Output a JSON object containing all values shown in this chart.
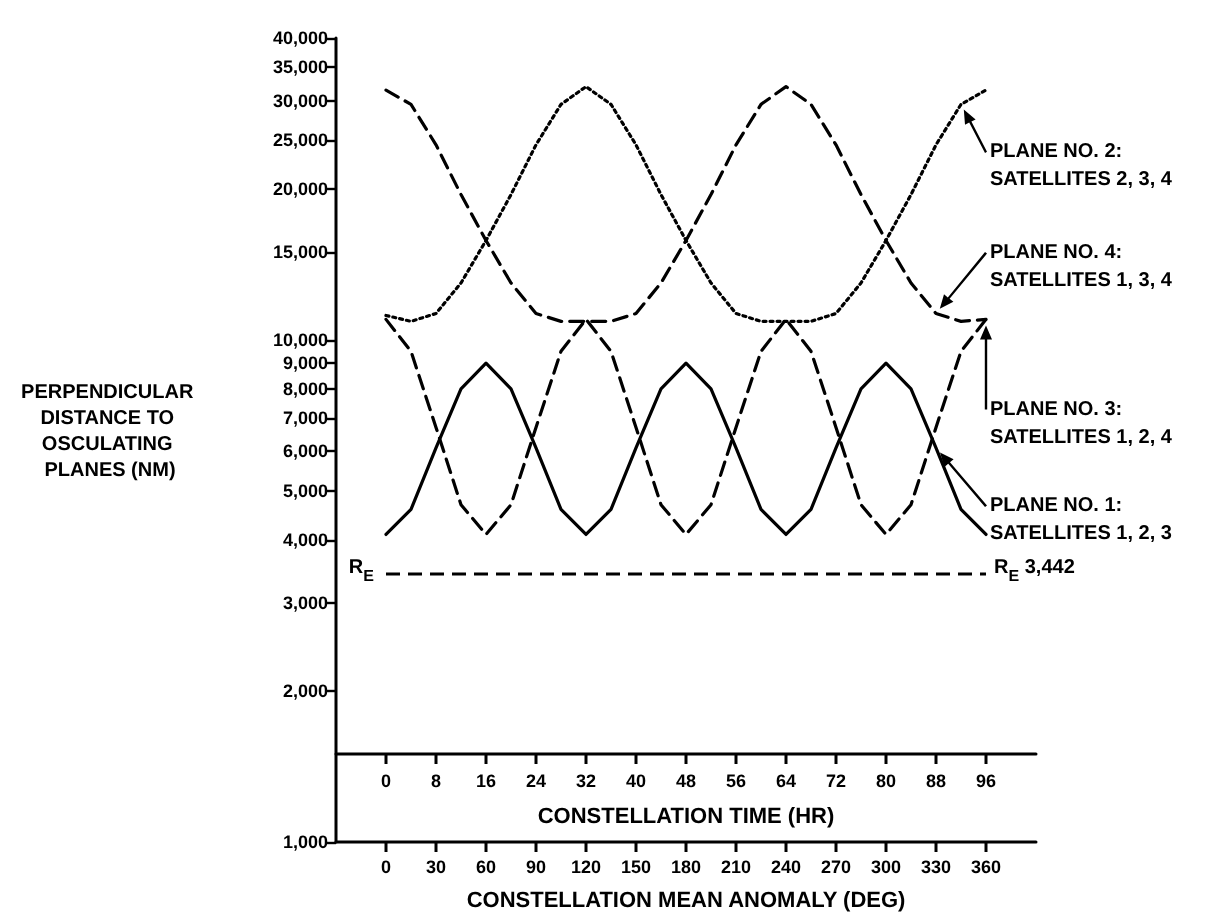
{
  "chart_data": {
    "type": "line",
    "x": [
      0,
      4,
      8,
      12,
      16,
      20,
      24,
      28,
      32,
      36,
      40,
      44,
      48,
      52,
      56,
      60,
      64,
      68,
      72,
      76,
      80,
      84,
      88,
      92,
      96
    ],
    "series": [
      {
        "name": "PLANE NO. 2: SATELLITES 2, 3, 4",
        "color": "#000000",
        "line_style": "dotted",
        "values": [
          11200,
          10900,
          11300,
          13000,
          15800,
          19500,
          24500,
          29500,
          32000,
          29500,
          24500,
          19500,
          15800,
          13000,
          11300,
          10900,
          10900,
          10900,
          11300,
          13000,
          15800,
          19500,
          24500,
          29500,
          31500
        ]
      },
      {
        "name": "PLANE NO. 4: SATELLITES 1, 3, 4",
        "color": "#000000",
        "line_style": "dashed",
        "values": [
          31500,
          29500,
          24500,
          19500,
          15800,
          13000,
          11300,
          10900,
          10900,
          10900,
          11300,
          13000,
          15800,
          19500,
          24500,
          29500,
          32000,
          29500,
          24500,
          19500,
          15800,
          13000,
          11300,
          10900,
          11000
        ]
      },
      {
        "name": "PLANE NO. 3: SATELLITES 1, 2, 4",
        "color": "#000000",
        "line_style": "dashed",
        "values": [
          11000,
          9500,
          6700,
          4700,
          4100,
          4700,
          6700,
          9500,
          11000,
          9500,
          6700,
          4700,
          4100,
          4700,
          6700,
          9500,
          11000,
          9500,
          6700,
          4700,
          4100,
          4700,
          6700,
          9500,
          11000
        ]
      },
      {
        "name": "PLANE NO. 1: SATELLITES 1, 2, 3",
        "color": "#000000",
        "line_style": "solid",
        "values": [
          4100,
          4600,
          6100,
          8000,
          9000,
          8000,
          6100,
          4600,
          4100,
          4600,
          6100,
          8000,
          9000,
          8000,
          6100,
          4600,
          4100,
          4600,
          6100,
          8000,
          9000,
          8000,
          6100,
          4600,
          4100
        ]
      }
    ],
    "xlabel": "CONSTELLATION TIME (HR)",
    "x2label": "CONSTELLATION MEAN ANOMALY (DEG)",
    "ylabel": "PERPENDICULAR DISTANCE TO OSCULATING PLANES (NM)",
    "xlim": [
      -8,
      104
    ],
    "xticks": [
      0,
      8,
      16,
      24,
      32,
      40,
      48,
      56,
      64,
      72,
      80,
      88,
      96
    ],
    "x2lim": [
      -30,
      390
    ],
    "x2ticks": [
      0,
      30,
      60,
      90,
      120,
      150,
      180,
      210,
      240,
      270,
      300,
      330,
      360
    ],
    "ylim": [
      1000,
      40000
    ],
    "yticks": [
      {
        "value": 1000,
        "label": "1,000"
      },
      {
        "value": 2000,
        "label": "2,000"
      },
      {
        "value": 3000,
        "label": "3,000"
      },
      {
        "value": 4000,
        "label": "4,000"
      },
      {
        "value": 5000,
        "label": "5,000"
      },
      {
        "value": 6000,
        "label": "6,000"
      },
      {
        "value": 7000,
        "label": "7,000"
      },
      {
        "value": 8000,
        "label": "8,000"
      },
      {
        "value": 9000,
        "label": "9,000"
      },
      {
        "value": 10000,
        "label": "10,000"
      },
      {
        "value": 15000,
        "label": "15,000"
      },
      {
        "value": 20000,
        "label": "20,000"
      },
      {
        "value": 25000,
        "label": "25,000"
      },
      {
        "value": 30000,
        "label": "30,000"
      },
      {
        "value": 35000,
        "label": "35,000"
      },
      {
        "value": 40000,
        "label": "40,000"
      }
    ],
    "log": "y",
    "grid": false,
    "legend": false,
    "marker": "none",
    "ref_lines": [
      {
        "axis": "y",
        "value": 3442,
        "label": "R$_{E}$ 3,442",
        "color": "#000000",
        "line_style": "dashed"
      }
    ],
    "annotations": [
      "R$_{E}$"
    ]
  }
}
